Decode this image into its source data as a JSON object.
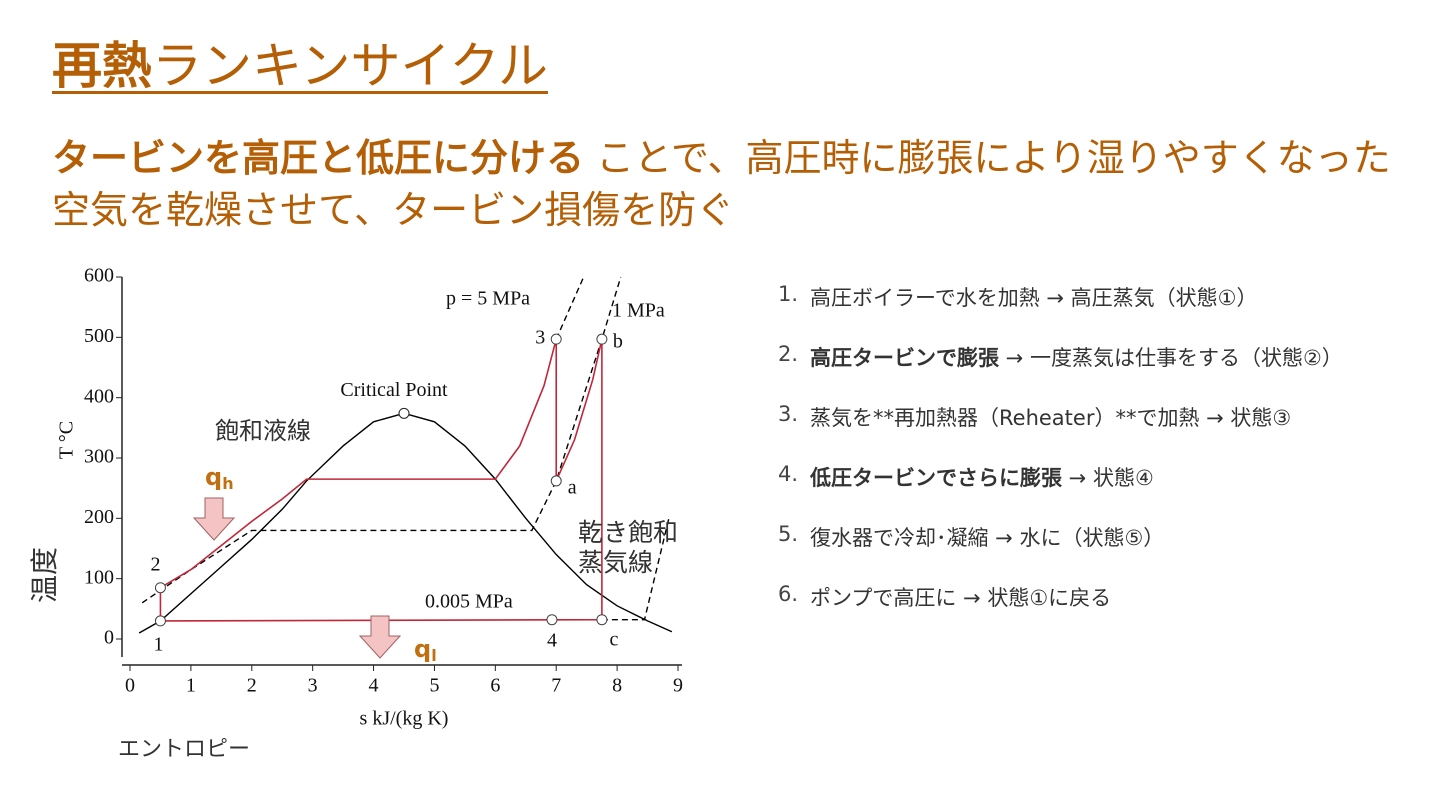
{
  "slide": {
    "title_bold": "再熱",
    "title_rest": "ランキンサイクル",
    "subtitle_bold": "タービンを高圧と低圧に分ける",
    "subtitle_rest": "ことで、高圧時に膨張により湿りやすくなった空気を乾燥させて、タービン損傷を防ぐ",
    "steps": [
      {
        "num": "1.",
        "text": "高圧ボイラーで水を加熱 → 高圧蒸気（状態①）"
      },
      {
        "num": "2.",
        "bold": "高圧タービンで膨張",
        "text": " → 一度蒸気は仕事をする（状態②）"
      },
      {
        "num": "3.",
        "text": "蒸気を**再加熱器（Reheater）**で加熱 → 状態③"
      },
      {
        "num": "4.",
        "bold": "低圧タービンでさらに膨張",
        "text": " → 状態④"
      },
      {
        "num": "5.",
        "text": "復水器で冷却･凝縮 → 水に（状態⑤）"
      },
      {
        "num": "6.",
        "text": "ポンプで高圧に → 状態①に戻る"
      }
    ]
  },
  "chart_data": {
    "type": "line",
    "xlabel": "s   kJ/(kg K)",
    "xlabel_jp": "エントロピー",
    "ylabel": "T  °C",
    "ylabel_jp": "温度",
    "xlim": [
      0,
      9
    ],
    "xticks": [
      0,
      1,
      2,
      3,
      4,
      5,
      6,
      7,
      8,
      9
    ],
    "ylim": [
      0,
      600
    ],
    "yticks": [
      0,
      100,
      200,
      300,
      400,
      500,
      600
    ],
    "q_h": {
      "text": "q",
      "sub": "h"
    },
    "q_l": {
      "text": "q",
      "sub": "l"
    },
    "critical_point": {
      "label": "Critical Point",
      "x": 4.5,
      "y": 374
    },
    "series": [
      {
        "name": "飽和液線",
        "color": "#000000",
        "dash": false,
        "x": [
          0.15,
          0.5,
          1,
          1.5,
          2,
          2.5,
          2.9,
          3.5,
          4,
          4.5
        ],
        "y": [
          10,
          30,
          75,
          120,
          165,
          215,
          262,
          320,
          360,
          374
        ]
      },
      {
        "name": "乾き飽和蒸気線",
        "color": "#000000",
        "dash": false,
        "x": [
          4.5,
          5,
          5.5,
          6,
          6.5,
          7,
          7.5,
          8,
          8.5,
          8.9
        ],
        "y": [
          374,
          360,
          320,
          265,
          200,
          140,
          90,
          55,
          30,
          12
        ]
      },
      {
        "name": "p = 5 MPa",
        "color": "#000000",
        "dash": true,
        "x": [
          7,
          7.45
        ],
        "y": [
          497,
          600
        ]
      },
      {
        "name": "1 MPa",
        "color": "#000000",
        "dash": true,
        "x": [
          0.2,
          1,
          2,
          6.6,
          7,
          7.75,
          8.06
        ],
        "y": [
          60,
          115,
          180,
          180,
          262,
          497,
          600
        ]
      },
      {
        "name": "0.005 MPa",
        "color": "#000000",
        "dash": true,
        "x": [
          7.75,
          8.45,
          8.85
        ],
        "y": [
          32,
          32,
          200
        ]
      },
      {
        "color": "#c0283a",
        "dash": false,
        "x": [
          0.5,
          0.5,
          1,
          1.5,
          2,
          2.5,
          2.9,
          6,
          6.4,
          6.8,
          7,
          7,
          7.3,
          7.6,
          7.75,
          7.75,
          0.5
        ],
        "y": [
          30,
          85,
          115,
          155,
          195,
          232,
          265,
          265,
          320,
          420,
          497,
          262,
          330,
          430,
          497,
          32,
          30
        ]
      }
    ],
    "points": [
      {
        "label": "1",
        "x": 0.5,
        "y": 30
      },
      {
        "label": "2",
        "x": 0.5,
        "y": 85
      },
      {
        "label": "3",
        "x": 7,
        "y": 497
      },
      {
        "label": "a",
        "x": 7,
        "y": 262
      },
      {
        "label": "b",
        "x": 7.75,
        "y": 497
      },
      {
        "label": "c",
        "x": 7.75,
        "y": 32
      },
      {
        "label": "4",
        "x": 6.93,
        "y": 32
      }
    ]
  }
}
